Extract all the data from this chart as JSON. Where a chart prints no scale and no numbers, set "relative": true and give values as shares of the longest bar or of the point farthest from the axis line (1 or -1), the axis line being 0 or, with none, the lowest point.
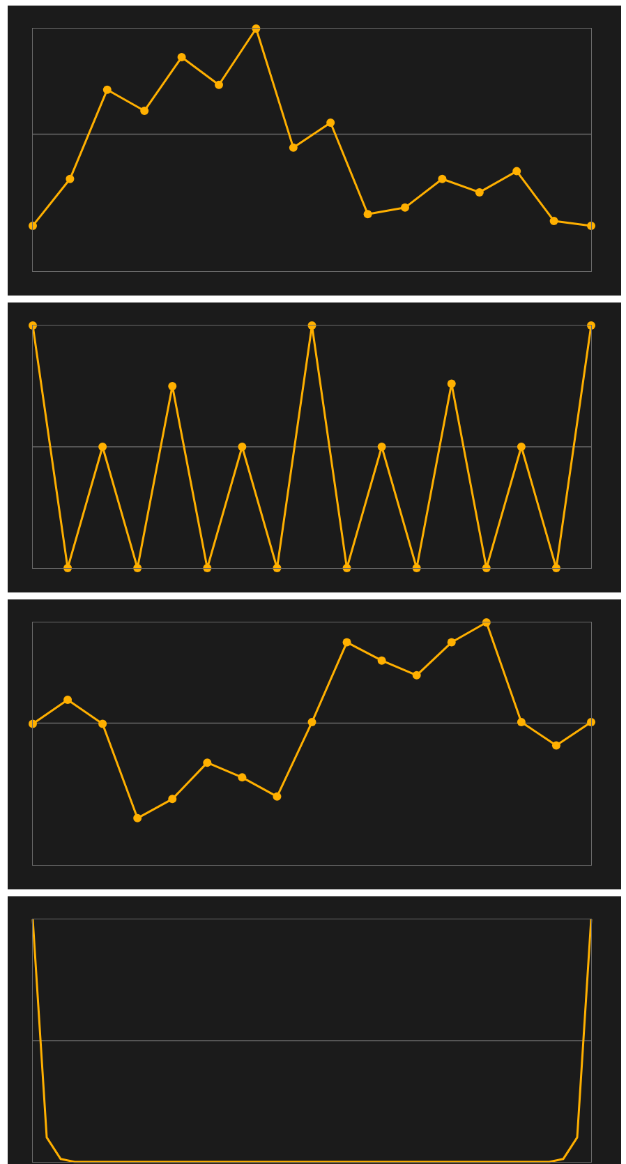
{
  "chart_data": [
    {
      "type": "line",
      "relative": true,
      "color": "#ffb000",
      "marker": "circle",
      "tick_labels": false,
      "categories": [
        null,
        null,
        null,
        null,
        null,
        null,
        null,
        null,
        null,
        null,
        null,
        null,
        null,
        null,
        null,
        null
      ],
      "values": [
        0.187,
        0.38,
        0.748,
        0.661,
        0.882,
        0.768,
        1,
        0.509,
        0.612,
        0.235,
        0.262,
        0.38,
        0.325,
        0.412,
        0.207,
        0.187
      ],
      "ref_lines": [
        {
          "axis": "y",
          "value": 0.565
        }
      ]
    },
    {
      "type": "line",
      "relative": true,
      "color": "#ffb000",
      "marker": "circle",
      "tick_labels": false,
      "categories": [
        null,
        null,
        null,
        null,
        null,
        null,
        null,
        null,
        null,
        null,
        null,
        null,
        null,
        null,
        null,
        null,
        null
      ],
      "values": [
        1,
        0,
        0.5,
        0,
        0.75,
        0,
        0.5,
        0,
        1,
        0,
        0.5,
        0,
        0.76,
        0,
        0.5,
        0,
        1
      ],
      "ref_lines": [
        {
          "axis": "y",
          "value": 0.5
        }
      ]
    },
    {
      "type": "line",
      "relative": true,
      "color": "#ffb000",
      "marker": "circle",
      "tick_labels": false,
      "categories": [
        null,
        null,
        null,
        null,
        null,
        null,
        null,
        null,
        null,
        null,
        null,
        null,
        null,
        null,
        null,
        null,
        null
      ],
      "values": [
        0.582,
        0.681,
        0.582,
        0.193,
        0.272,
        0.422,
        0.361,
        0.282,
        0.589,
        0.918,
        0.843,
        0.782,
        0.918,
        1,
        0.589,
        0.493,
        0.589
      ],
      "ref_lines": [
        {
          "axis": "y",
          "value": 0.585
        }
      ]
    },
    {
      "type": "line",
      "relative": true,
      "color": "#ffb000",
      "tick_labels": false,
      "categories": [
        null,
        null,
        null,
        null,
        null,
        null,
        null,
        null,
        null,
        null,
        null,
        null,
        null,
        null,
        null,
        null,
        null,
        null,
        null,
        null,
        null,
        null,
        null,
        null,
        null,
        null,
        null,
        null,
        null,
        null,
        null,
        null,
        null,
        null,
        null,
        null,
        null,
        null,
        null,
        null,
        null
      ],
      "values": [
        1,
        0.101,
        0.012,
        0,
        0,
        0,
        0,
        0,
        0,
        0,
        0,
        0,
        0,
        0,
        0,
        0,
        0,
        0,
        0,
        0,
        0,
        0,
        0,
        0,
        0,
        0,
        0,
        0,
        0,
        0,
        0,
        0,
        0,
        0,
        0,
        0,
        0,
        0,
        0.012,
        0.101,
        1
      ],
      "ref_lines": [
        {
          "axis": "y",
          "value": 0.5
        }
      ]
    }
  ]
}
